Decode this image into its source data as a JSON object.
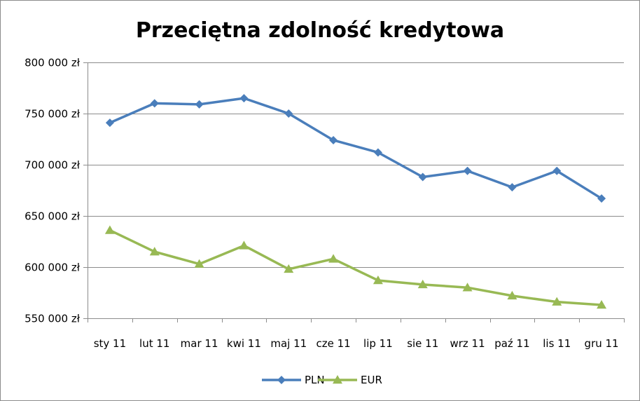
{
  "chart_data": {
    "type": "line",
    "title": "Przeciętna zdolność kredytowa",
    "categories": [
      "sty 11",
      "lut 11",
      "mar 11",
      "kwi 11",
      "maj 11",
      "cze 11",
      "lip 11",
      "sie 11",
      "wrz 11",
      "paź 11",
      "lis 11",
      "gru 11"
    ],
    "series": [
      {
        "name": "PLN",
        "color": "#4a7ebb",
        "marker": "diamond",
        "values": [
          741000,
          760000,
          759000,
          765000,
          750000,
          724000,
          712000,
          688000,
          694000,
          678000,
          694000,
          667000
        ]
      },
      {
        "name": "EUR",
        "color": "#98b954",
        "marker": "triangle",
        "values": [
          636000,
          615000,
          603000,
          621000,
          598000,
          608000,
          587000,
          583000,
          580000,
          572000,
          566000,
          563000
        ]
      }
    ],
    "y_ticks": [
      "550 000 zł",
      "600 000 zł",
      "650 000 zł",
      "700 000 zł",
      "750 000 zł",
      "800 000 zł"
    ],
    "y_tick_values": [
      550000,
      600000,
      650000,
      700000,
      750000,
      800000
    ],
    "ylim": [
      550000,
      800000
    ],
    "grid": true,
    "legend_position": "bottom"
  }
}
